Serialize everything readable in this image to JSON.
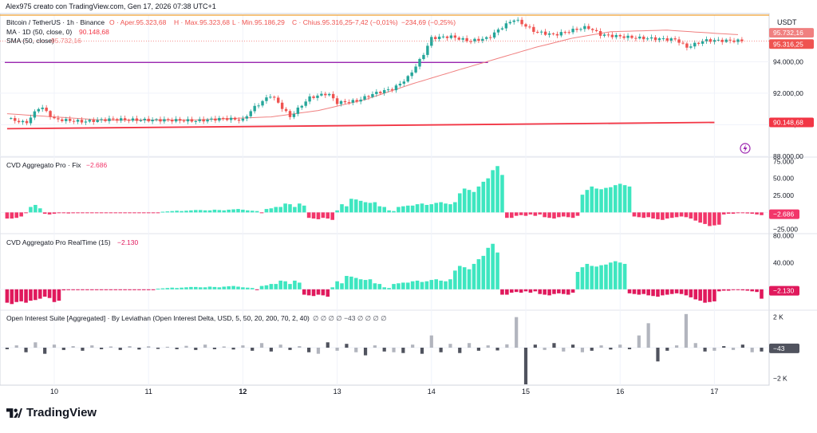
{
  "header": {
    "created_by": "Alex975 creato con TradingView.com, Gen 17, 2026 07:38 UTC+1",
    "currency": "USDT"
  },
  "legend": {
    "symbol": "Bitcoin / TetherUS · 1h · Binance",
    "open": "O · Aper.95.323,68",
    "high": "H · Max.95.323,68",
    "low": "L · Min.95.186,29",
    "close": "C · Chius.95.316,25",
    "change": "−7,42 (−0,01%)",
    "volume": "−234,69 (−0,25%)",
    "ma_label": "MA · 1D (50, close, 0)",
    "ma_value": "90.148,68",
    "sma_label": "SMA (50, close)",
    "sma_value": "95.732,16"
  },
  "panes": {
    "cvd_fix_label": "CVD Aggregato Pro · Fix",
    "cvd_fix_value": "−2.686",
    "cvd_rt_label": "CVD Aggregato Pro RealTime (15)",
    "cvd_rt_value": "−2.130",
    "oi_label": "Open Interest Suite [Aggregated] · By Leviathan (Open Interest Delta, USD, 5, 50, 20, 200, 70, 2, 40)",
    "oi_symbols": "∅ ∅ ∅ ∅ −43 ∅ ∅ ∅ ∅",
    "oi_value": "−43"
  },
  "brand": "TradingView",
  "colors": {
    "up": "#26a69a",
    "down": "#ef5350",
    "cvd_up": "#3ee6c0",
    "cvd_down": "#f2366a",
    "rt_down": "#e0195c",
    "sma": "#f08080",
    "ma_1d": "#f23645",
    "purple": "#9c27b0",
    "orange": "#f0a030",
    "oi_light": "#b2b5be",
    "oi_dark": "#50535e"
  },
  "chart_data": [
    {
      "type": "candlestick",
      "title": "Bitcoin / TetherUS · 1h · Binance",
      "x_ticks": [
        "10",
        "11",
        "12",
        "13",
        "14",
        "15",
        "16",
        "17"
      ],
      "y_ticks": [
        "88.000,00",
        "90.000,00",
        "92.000,00",
        "94.000,00"
      ],
      "ylim": [
        88000,
        97000
      ],
      "price_labels": {
        "sma": "95.732,16",
        "last": "95.316,25",
        "ma_1d": "90.148,68"
      },
      "levels": {
        "orange_resistance": 96950,
        "purple_line": 93950
      },
      "close_path": [
        [
          9.5,
          90400
        ],
        [
          9.7,
          90100
        ],
        [
          9.85,
          91200
        ],
        [
          10.0,
          90350
        ],
        [
          10.3,
          90200
        ],
        [
          10.6,
          90350
        ],
        [
          10.9,
          90300
        ],
        [
          11.2,
          90300
        ],
        [
          11.5,
          90250
        ],
        [
          11.8,
          90400
        ],
        [
          12.0,
          90300
        ],
        [
          12.1,
          91000
        ],
        [
          12.3,
          91900
        ],
        [
          12.5,
          90500
        ],
        [
          12.7,
          91700
        ],
        [
          12.9,
          92000
        ],
        [
          13.0,
          91400
        ],
        [
          13.2,
          91500
        ],
        [
          13.4,
          92000
        ],
        [
          13.6,
          92300
        ],
        [
          13.75,
          93000
        ],
        [
          13.9,
          94300
        ],
        [
          14.0,
          95500
        ],
        [
          14.2,
          95600
        ],
        [
          14.4,
          95300
        ],
        [
          14.6,
          95500
        ],
        [
          14.75,
          96200
        ],
        [
          14.88,
          96700
        ],
        [
          15.1,
          95900
        ],
        [
          15.3,
          95700
        ],
        [
          15.5,
          96000
        ],
        [
          15.65,
          96200
        ],
        [
          15.8,
          95700
        ],
        [
          16.0,
          95600
        ],
        [
          16.2,
          95500
        ],
        [
          16.4,
          95450
        ],
        [
          16.6,
          95400
        ],
        [
          16.7,
          94900
        ],
        [
          16.9,
          95350
        ],
        [
          17.3,
          95320
        ]
      ],
      "sma_path": [
        [
          9.5,
          90700
        ],
        [
          10.5,
          90300
        ],
        [
          11.5,
          90300
        ],
        [
          12.3,
          90500
        ],
        [
          12.8,
          90900
        ],
        [
          13.3,
          91600
        ],
        [
          13.8,
          92600
        ],
        [
          14.3,
          93500
        ],
        [
          14.7,
          94200
        ],
        [
          15.1,
          94900
        ],
        [
          15.5,
          95500
        ],
        [
          15.9,
          95900
        ],
        [
          16.5,
          96000
        ],
        [
          17.0,
          95800
        ],
        [
          17.3,
          95700
        ]
      ],
      "ma_1d_path": [
        [
          9.5,
          89750
        ],
        [
          17.0,
          90150
        ]
      ]
    },
    {
      "type": "bar",
      "title": "CVD Aggregato Pro · Fix",
      "y_ticks": [
        "75.000",
        "50.000",
        "25.000",
        "−25.000"
      ],
      "ylim": [
        -30000,
        80000
      ],
      "series": [
        {
          "x_start": 9.5,
          "x_step": 0.05,
          "values": [
            -9000,
            -9000,
            -8000,
            -6000,
            -1000,
            8000,
            11000,
            6000,
            -2000,
            -3000,
            -2000,
            -1000,
            -1000,
            -1500,
            -1200,
            -1000,
            -800,
            -1000,
            -900,
            -800,
            -700,
            -1000,
            -800,
            -700,
            -600,
            -1000,
            -800,
            -500,
            -500,
            -400,
            -600,
            -700,
            -500,
            1000,
            1500,
            2000,
            2500,
            2000,
            2500,
            3000,
            3500,
            3500,
            3000,
            3000,
            4000,
            3500,
            3000,
            4000,
            4500,
            5000,
            4000,
            3000,
            2500,
            2000,
            -500,
            5000,
            6000,
            8000,
            8000,
            13000,
            12000,
            8000,
            13000,
            10000,
            -8000,
            -9000,
            -10000,
            -8000,
            -9000,
            -11000,
            3000,
            12000,
            9000,
            20000,
            19000,
            17000,
            15000,
            14000,
            15000,
            9000,
            8000,
            3000,
            2000,
            8000,
            9000,
            10000,
            10000,
            12000,
            13000,
            11000,
            12000,
            14000,
            15000,
            13000,
            12000,
            15000,
            28000,
            35000,
            33000,
            30000,
            38000,
            45000,
            50000,
            62000,
            68000,
            55000,
            -8000,
            -8000,
            -5000,
            -4000,
            -5000,
            -3000,
            -5000,
            -3000,
            -7000,
            -8000,
            -9000,
            -7000,
            -6000,
            -7000,
            -8000,
            -5000,
            26000,
            33000,
            38000,
            35000,
            34000,
            36000,
            37000,
            40000,
            42000,
            40000,
            38000,
            -6000,
            -7000,
            -8000,
            -7000,
            -9000,
            -10000,
            -11000,
            -9000,
            -8000,
            -7000,
            -6000,
            -7000,
            -9000,
            -12000,
            -15000,
            -17000,
            -20000,
            -19000,
            -18000,
            -3000,
            -2000,
            -2000,
            -1000,
            -1000,
            -1500,
            -2000,
            -3000,
            -4000,
            -14000,
            -17000,
            -16000,
            -15000,
            -14000,
            -12000,
            -10000,
            -9000,
            -8000,
            -7000,
            -6000,
            -5000,
            -4000,
            -3000,
            -2686
          ]
        }
      ]
    },
    {
      "type": "bar",
      "title": "CVD Aggregato Pro RealTime (15)",
      "y_ticks": [
        "80.000",
        "40.000"
      ],
      "ylim": [
        -30000,
        82000
      ],
      "series": [
        {
          "x_start": 9.5,
          "x_step": 0.05,
          "values": [
            -20000,
            -22000,
            -19000,
            -18000,
            -20000,
            -17000,
            -16000,
            -14000,
            -11000,
            -13000,
            -19000,
            -17000,
            -1500,
            -1200,
            -1000,
            -800,
            -1000,
            -900,
            -800,
            -700,
            -1000,
            -800,
            -700,
            -600,
            -1000,
            -800,
            -500,
            -500,
            -400,
            -600,
            -700,
            -500,
            1000,
            1500,
            2000,
            2500,
            2000,
            2500,
            3000,
            3500,
            3500,
            3000,
            3000,
            4000,
            3500,
            3000,
            4000,
            4500,
            5000,
            4000,
            3000,
            2500,
            2000,
            -500,
            5000,
            6000,
            8000,
            8000,
            13000,
            12000,
            8000,
            13000,
            10000,
            -8000,
            -9000,
            -10000,
            -8000,
            -9000,
            -11000,
            3000,
            12000,
            9000,
            20000,
            19000,
            17000,
            15000,
            14000,
            15000,
            9000,
            8000,
            3000,
            2000,
            8000,
            9000,
            10000,
            10000,
            12000,
            13000,
            11000,
            12000,
            14000,
            15000,
            13000,
            12000,
            15000,
            28000,
            35000,
            33000,
            30000,
            38000,
            45000,
            50000,
            62000,
            68000,
            55000,
            -8000,
            -8000,
            -5000,
            -4000,
            -5000,
            -3000,
            -5000,
            -3000,
            -7000,
            -8000,
            -9000,
            -7000,
            -6000,
            -7000,
            -8000,
            -5000,
            26000,
            33000,
            38000,
            35000,
            34000,
            36000,
            37000,
            40000,
            42000,
            40000,
            38000,
            -6000,
            -7000,
            -8000,
            -7000,
            -9000,
            -10000,
            -11000,
            -9000,
            -8000,
            -7000,
            -6000,
            -7000,
            -9000,
            -12000,
            -15000,
            -17000,
            -20000,
            -19000,
            -18000,
            -3000,
            -2000,
            -2000,
            -1000,
            -1000,
            -1500,
            -2000,
            -3000,
            -4000,
            -14000,
            -17000,
            -16000,
            -15000,
            -14000,
            -12000,
            -10000,
            -9000,
            -8000,
            -7000,
            -6000,
            -5000,
            -4000,
            -3000,
            -2130
          ]
        }
      ]
    },
    {
      "type": "bar",
      "title": "Open Interest Suite [Aggregated] · By Leviathan",
      "y_ticks": [
        "2 K",
        "−2 K"
      ],
      "ylim": [
        -2400,
        2400
      ],
      "series": [
        {
          "x_start": 9.5,
          "x_step": 0.1,
          "values": [
            -100,
            150,
            -300,
            350,
            -400,
            200,
            -150,
            100,
            -200,
            150,
            -100,
            80,
            -150,
            100,
            -120,
            90,
            -80,
            60,
            -100,
            120,
            -150,
            200,
            -100,
            80,
            -120,
            150,
            -200,
            300,
            -250,
            200,
            -150,
            100,
            -300,
            -400,
            350,
            -200,
            250,
            -300,
            -500,
            150,
            -250,
            -300,
            -350,
            200,
            -400,
            800,
            -300,
            250,
            -350,
            300,
            -200,
            150,
            -180,
            220,
            2000,
            -2400,
            200,
            -150,
            300,
            -250,
            200,
            -300,
            -200,
            150,
            -120,
            200,
            -100,
            800,
            1600,
            -900,
            -200,
            150,
            2200,
            300,
            -250,
            -200,
            100,
            -150,
            200,
            -300,
            -250,
            -400,
            200,
            -150,
            300,
            -250,
            200,
            -300,
            1000,
            -700,
            -200,
            -100,
            -300,
            -250,
            200,
            -150,
            100,
            -100,
            -300,
            -400,
            -200,
            250,
            300,
            -500,
            -300,
            -200,
            150,
            -43
          ]
        }
      ]
    }
  ]
}
